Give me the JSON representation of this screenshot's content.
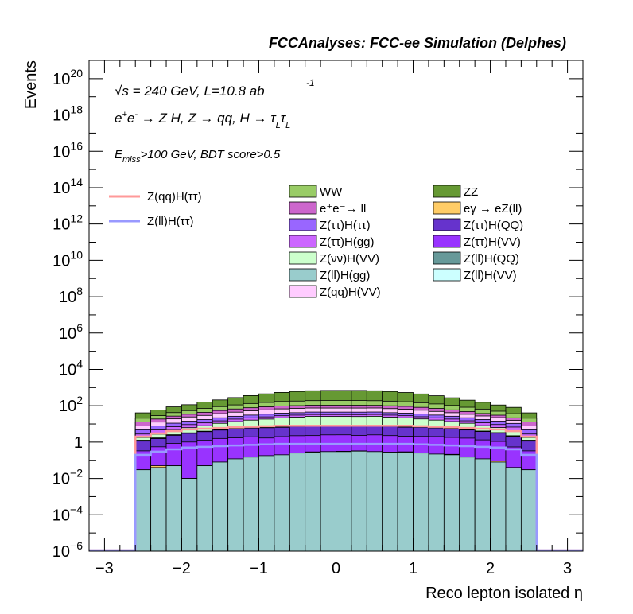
{
  "header": {
    "title": "FCCAnalyses: FCC-ee Simulation (Delphes)"
  },
  "annotations": {
    "sqrt_s_prefix": "√",
    "sqrt_s_text": "s = 240 GeV, L=10.8 ab",
    "lumi_exp": "-1",
    "process_line": "e⁺e⁻ → Z H, Z → qq, H → τ_L τ_L",
    "process_a": "e",
    "process_b": "+",
    "process_c": "e",
    "process_d": "-",
    "process_e": " → Z H, Z  → qq, H  → τ",
    "process_f": "L",
    "process_g": "τ",
    "process_h": "L",
    "cut_a": "E",
    "cut_b": "miss",
    "cut_c": ">100 GeV, BDT score>0.5"
  },
  "chart_data": {
    "type": "area",
    "xlabel": "Reco lepton isolated η",
    "ylabel": "Events",
    "xlim": [
      -3.2,
      3.2
    ],
    "ylim": [
      1e-06,
      1e+21
    ],
    "yscale": "log",
    "x_ticks": [
      "−3",
      "−2",
      "−1",
      "0",
      "1",
      "2",
      "3"
    ],
    "y_ticks": [
      {
        "base": "10",
        "exp": "−6"
      },
      {
        "base": "10",
        "exp": "−4"
      },
      {
        "base": "10",
        "exp": "−2"
      },
      {
        "base": "1",
        "exp": ""
      },
      {
        "base": "10",
        "exp": "2"
      },
      {
        "base": "10",
        "exp": "4"
      },
      {
        "base": "10",
        "exp": "6"
      },
      {
        "base": "10",
        "exp": "8"
      },
      {
        "base": "10",
        "exp": "10"
      },
      {
        "base": "10",
        "exp": "12"
      },
      {
        "base": "10",
        "exp": "14"
      },
      {
        "base": "10",
        "exp": "16"
      },
      {
        "base": "10",
        "exp": "18"
      },
      {
        "base": "10",
        "exp": "20"
      }
    ],
    "bin_edges": [
      -2.6,
      -2.4,
      -2.2,
      -2.0,
      -1.8,
      -1.6,
      -1.4,
      -1.2,
      -1.0,
      -0.8,
      -0.6,
      -0.4,
      -0.2,
      0.0,
      0.2,
      0.4,
      0.6,
      0.8,
      1.0,
      1.2,
      1.4,
      1.6,
      1.8,
      2.0,
      2.2,
      2.4,
      2.6
    ],
    "stack_series": [
      {
        "name": "Z(ll)H(gg)",
        "color": "#99cccc",
        "values": [
          0.03,
          0.04,
          0.05,
          0.01,
          0.05,
          0.08,
          0.12,
          0.15,
          0.18,
          0.2,
          0.25,
          0.28,
          0.3,
          0.3,
          0.32,
          0.3,
          0.28,
          0.28,
          0.25,
          0.22,
          0.2,
          0.15,
          0.12,
          0.08,
          0.04,
          0.03
        ]
      },
      {
        "name": "eγ → eZ(ll)",
        "color": "#ffcc66",
        "values": [
          0,
          0.01,
          0,
          0,
          0,
          0,
          0,
          0,
          0,
          0,
          0,
          0.01,
          0,
          0.012,
          0.01,
          0,
          0,
          0.012,
          0,
          0,
          0.012,
          0,
          0,
          0.012,
          0,
          0
        ]
      },
      {
        "name": "Z(ττ)H(VV)",
        "color": "#9933ff",
        "values": [
          0.3,
          0.5,
          0.8,
          1.0,
          1.2,
          1.5,
          1.6,
          1.8,
          1.5,
          1.8,
          2.0,
          2.0,
          2.2,
          2.2,
          2.0,
          2.2,
          2.0,
          1.8,
          1.8,
          1.8,
          1.6,
          1.5,
          1.2,
          1.0,
          0.5,
          0.3
        ]
      },
      {
        "name": "Z(ττ)H(QQ)",
        "color": "#6633cc",
        "values": [
          0.8,
          1.0,
          1.5,
          2.0,
          2.5,
          3.0,
          3.5,
          4.0,
          4.5,
          4.5,
          5.0,
          5.5,
          5.0,
          5.0,
          5.0,
          5.5,
          5.0,
          4.5,
          4.5,
          4.0,
          3.5,
          3.0,
          2.5,
          2.0,
          1.5,
          0.8
        ]
      },
      {
        "name": "Z(ll)H(VV)",
        "color": "#ccffff",
        "values": [
          0.05,
          0.05,
          0.08,
          0.08,
          0.1,
          0.1,
          0.1,
          0.12,
          0.12,
          0.12,
          0.12,
          0.12,
          0.12,
          0.12,
          0.12,
          0.12,
          0.12,
          0.12,
          0.12,
          0.12,
          0.1,
          0.1,
          0.1,
          0.08,
          0.08,
          0.05
        ]
      },
      {
        "name": "Z(ll)H(QQ)",
        "color": "#669999",
        "values": [
          0.1,
          0.1,
          0.12,
          0.15,
          0.15,
          0.18,
          0.18,
          0.2,
          0.2,
          0.2,
          0.2,
          0.2,
          0.2,
          0.2,
          0.2,
          0.2,
          0.2,
          0.2,
          0.2,
          0.2,
          0.18,
          0.18,
          0.15,
          0.15,
          0.12,
          0.1
        ]
      },
      {
        "name": "Z(νν)H(VV)",
        "color": "#ccffcc",
        "values": [
          0.5,
          1.0,
          2.0,
          3.0,
          4.0,
          6.0,
          8.0,
          10.0,
          12.0,
          15.0,
          16.0,
          18.0,
          18.0,
          18.0,
          18.0,
          18.0,
          16.0,
          15.0,
          12.0,
          10.0,
          8.0,
          6.0,
          4.0,
          3.0,
          2.0,
          0.5
        ]
      },
      {
        "name": "Z(ττ)H(gg)",
        "color": "#cc66ff",
        "values": [
          1.0,
          2.0,
          2.5,
          3.0,
          3.5,
          4.0,
          5.0,
          5.5,
          6.0,
          6.5,
          7.0,
          7.0,
          7.0,
          7.0,
          7.0,
          7.0,
          7.0,
          6.5,
          6.0,
          5.5,
          5.0,
          4.0,
          3.5,
          3.0,
          2.5,
          1.0
        ]
      },
      {
        "name": "Z(ττ)H(ττ)",
        "color": "#9966ff",
        "values": [
          2.0,
          3.0,
          4.0,
          5.0,
          6.0,
          7.0,
          8.0,
          9.0,
          10.0,
          11.0,
          11.0,
          12.0,
          12.0,
          12.0,
          12.0,
          12.0,
          11.0,
          11.0,
          10.0,
          9.0,
          8.0,
          7.0,
          6.0,
          5.0,
          4.0,
          2.0
        ]
      },
      {
        "name": "Z(qq)H(VV)",
        "color": "#ffccff",
        "values": [
          3.0,
          5.0,
          8.0,
          10.0,
          12.0,
          15.0,
          18.0,
          22.0,
          25.0,
          28.0,
          30.0,
          30.0,
          30.0,
          30.0,
          30.0,
          30.0,
          28.0,
          25.0,
          22.0,
          18.0,
          15.0,
          12.0,
          10.0,
          8.0,
          5.0,
          3.0
        ]
      },
      {
        "name": "e⁺e⁻→ ll",
        "color": "#cc66cc",
        "values": [
          5.0,
          6.0,
          8.0,
          10.0,
          14.0,
          18.0,
          22.0,
          25.0,
          28.0,
          30.0,
          30.0,
          32.0,
          32.0,
          32.0,
          32.0,
          30.0,
          30.0,
          28.0,
          25.0,
          22.0,
          18.0,
          14.0,
          10.0,
          8.0,
          6.0,
          5.0
        ]
      },
      {
        "name": "WW",
        "color": "#99cc66",
        "values": [
          8.0,
          10.0,
          15.0,
          20.0,
          28.0,
          35.0,
          45.0,
          55.0,
          65.0,
          75.0,
          80.0,
          85.0,
          90.0,
          90.0,
          90.0,
          85.0,
          80.0,
          75.0,
          65.0,
          55.0,
          45.0,
          35.0,
          28.0,
          20.0,
          15.0,
          8.0
        ]
      },
      {
        "name": "ZZ",
        "color": "#669933",
        "values": [
          20.0,
          30.0,
          45.0,
          60.0,
          90.0,
          120.0,
          170.0,
          230.0,
          300.0,
          370.0,
          430.0,
          480.0,
          500.0,
          500.0,
          500.0,
          480.0,
          430.0,
          370.0,
          300.0,
          230.0,
          170.0,
          120.0,
          90.0,
          60.0,
          45.0,
          20.0
        ]
      }
    ],
    "line_series": [
      {
        "name": "Z(qq)H(ττ)",
        "color": "#ff9999",
        "values": [
          2.0,
          3.0,
          4.0,
          5.0,
          5.5,
          6.0,
          6.5,
          7.0,
          7.5,
          8.0,
          8.0,
          8.0,
          8.0,
          8.0,
          8.0,
          8.0,
          8.0,
          8.0,
          7.5,
          7.0,
          6.5,
          6.0,
          5.5,
          5.0,
          4.0,
          2.0
        ]
      },
      {
        "name": "Z(ll)H(ττ)",
        "color": "#9999ff",
        "values": [
          0.2,
          0.3,
          0.4,
          0.5,
          0.55,
          0.6,
          0.65,
          0.7,
          0.75,
          0.8,
          0.8,
          0.8,
          0.8,
          0.8,
          0.8,
          0.8,
          0.8,
          0.8,
          0.75,
          0.7,
          0.65,
          0.6,
          0.55,
          0.5,
          0.4,
          0.2
        ]
      }
    ],
    "legend_stack_order": [
      "WW",
      "ZZ",
      "e⁺e⁻→ ll",
      "eγ → eZ(ll)",
      "Z(ττ)H(ττ)",
      "Z(ττ)H(QQ)",
      "Z(ττ)H(gg)",
      "Z(ττ)H(VV)",
      "Z(νν)H(VV)",
      "Z(ll)H(QQ)",
      "Z(ll)H(gg)",
      "Z(ll)H(VV)",
      "Z(qq)H(VV)"
    ],
    "legend_placement": "upper-right (stack), upper-left (lines)",
    "grid": false
  }
}
